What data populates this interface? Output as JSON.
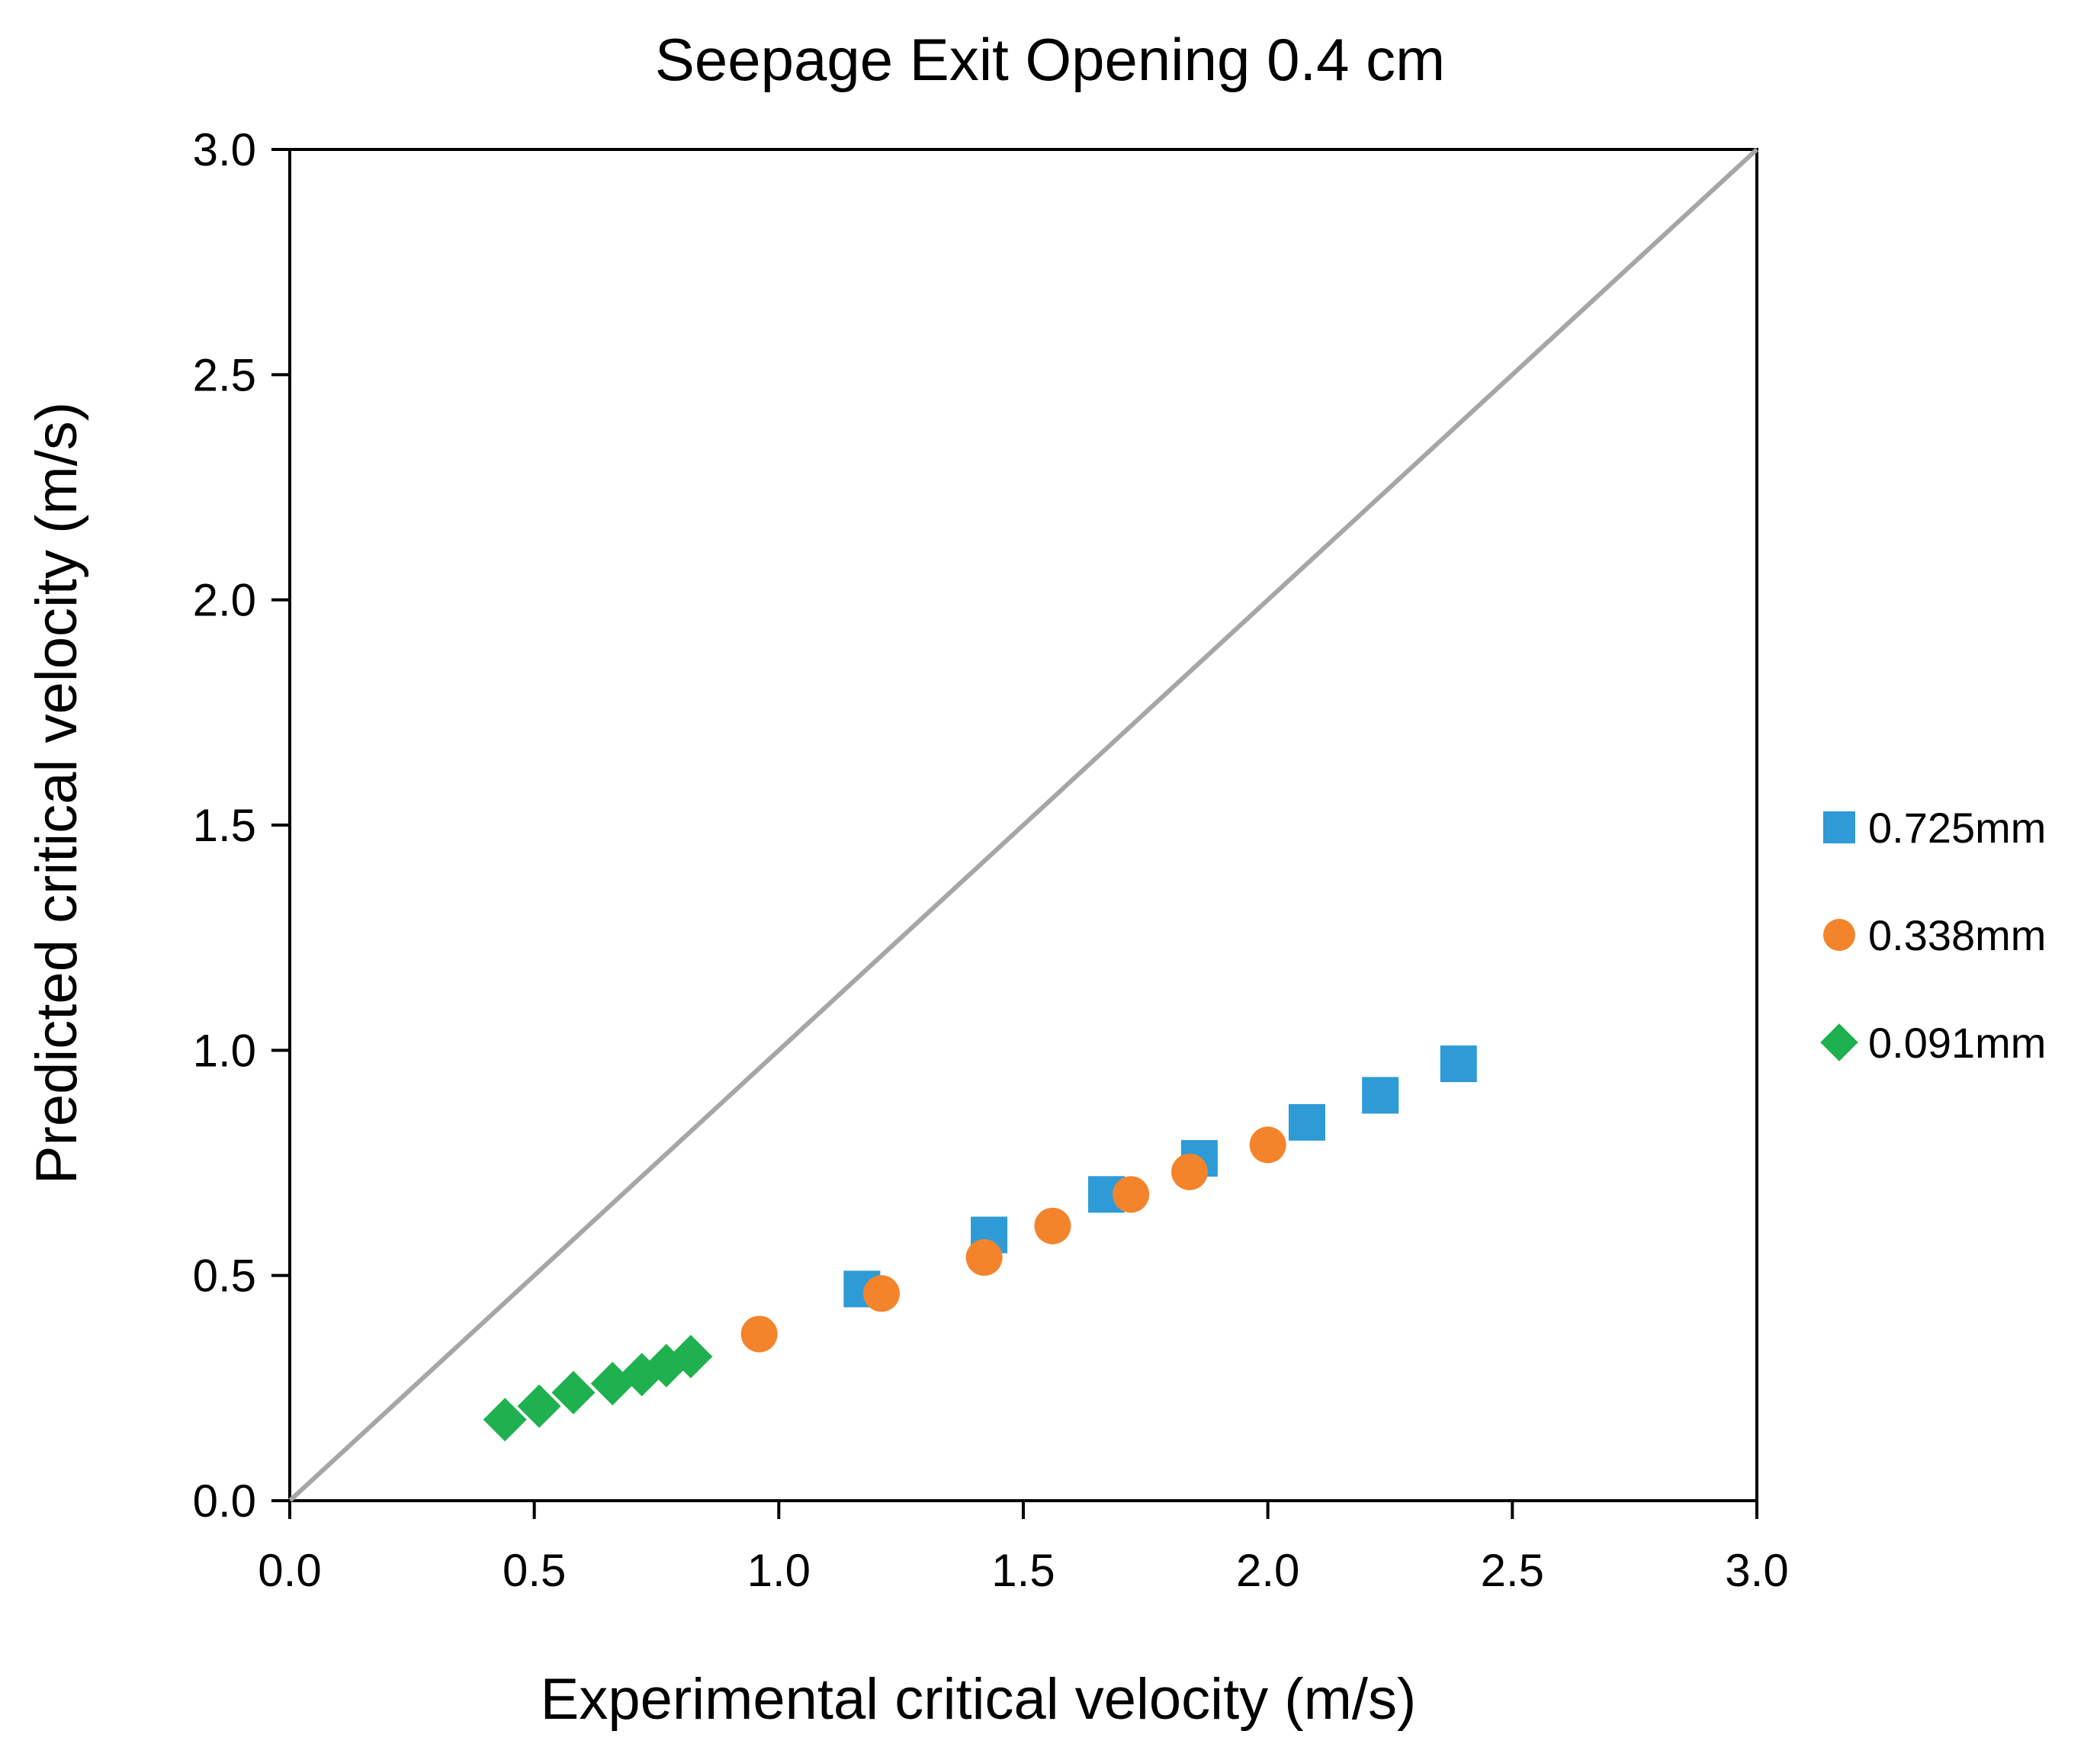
{
  "chart_data": {
    "type": "scatter",
    "title": "Seepage Exit Opening 0.4 cm",
    "xlabel": "Experimental critical velocity (m/s)",
    "ylabel": "Predicted critical velocity (m/s)",
    "xlim": [
      0,
      3
    ],
    "ylim": [
      0,
      3
    ],
    "xticks": [
      "0.0",
      "0.5",
      "1.0",
      "1.5",
      "2.0",
      "2.5",
      "3.0"
    ],
    "yticks": [
      "0.0",
      "0.5",
      "1.0",
      "1.5",
      "2.0",
      "2.5",
      "3.0"
    ],
    "grid": false,
    "legend_position": "right",
    "reference_line": {
      "name": "1:1 line",
      "x": [
        0,
        3
      ],
      "y": [
        0,
        3
      ],
      "color": "#a6a6a6"
    },
    "series": [
      {
        "name": "0.725mm",
        "marker": "square",
        "color": "#2e9bd6",
        "x": [
          1.17,
          1.43,
          1.67,
          1.86,
          2.08,
          2.23,
          2.39
        ],
        "y": [
          0.47,
          0.59,
          0.68,
          0.76,
          0.84,
          0.9,
          0.97
        ]
      },
      {
        "name": "0.338mm",
        "marker": "circle",
        "color": "#f4842c",
        "x": [
          0.96,
          1.21,
          1.42,
          1.56,
          1.72,
          1.84,
          2.0
        ],
        "y": [
          0.37,
          0.46,
          0.54,
          0.61,
          0.68,
          0.73,
          0.79
        ]
      },
      {
        "name": "0.091mm",
        "marker": "diamond",
        "color": "#1fb14f",
        "x": [
          0.44,
          0.51,
          0.58,
          0.66,
          0.72,
          0.77,
          0.82
        ],
        "y": [
          0.18,
          0.21,
          0.24,
          0.26,
          0.28,
          0.3,
          0.32
        ]
      }
    ]
  }
}
